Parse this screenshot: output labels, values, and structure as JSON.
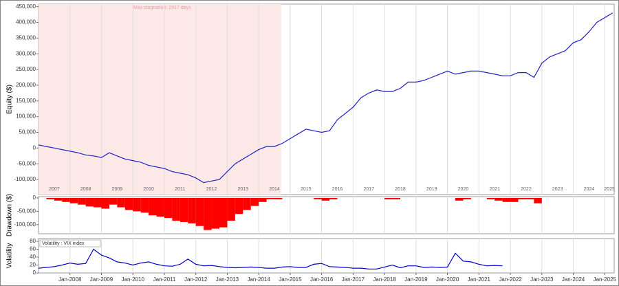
{
  "chart_data": [
    {
      "type": "line",
      "ylabel": "Equity ($)",
      "grid": true,
      "color_background_band": "#fde8e8",
      "stagnation": {
        "start": 2007.0,
        "end": 2014.71,
        "label": "Max stagnation: 2917 days"
      },
      "year_labels": [
        {
          "value": 2007.5,
          "label": "2007"
        },
        {
          "value": 2008.5,
          "label": "2008"
        },
        {
          "value": 2009.5,
          "label": "2009"
        },
        {
          "value": 2010.5,
          "label": "2010"
        },
        {
          "value": 2011.5,
          "label": "2011"
        },
        {
          "value": 2012.5,
          "label": "2012"
        },
        {
          "value": 2013.5,
          "label": "2013"
        },
        {
          "value": 2014.5,
          "label": "2014"
        },
        {
          "value": 2015.5,
          "label": "2015"
        },
        {
          "value": 2016.5,
          "label": "2016"
        },
        {
          "value": 2017.5,
          "label": "2017"
        },
        {
          "value": 2018.5,
          "label": "2018"
        },
        {
          "value": 2019.5,
          "label": "2019"
        },
        {
          "value": 2020.5,
          "label": "2020"
        },
        {
          "value": 2021.5,
          "label": "2021"
        },
        {
          "value": 2022.5,
          "label": "2022"
        },
        {
          "value": 2023.5,
          "label": "2023"
        },
        {
          "value": 2024.5,
          "label": "2024"
        },
        {
          "value": 2025.15,
          "label": "2025"
        }
      ],
      "xlim": [
        2007.0,
        2025.3
      ],
      "ylim": [
        -148000,
        458000
      ],
      "yticks": [
        {
          "value": -100000,
          "label": "-100,000"
        },
        {
          "value": -50000,
          "label": "-50,000"
        },
        0,
        {
          "value": 50000,
          "label": "50,000"
        },
        {
          "value": 100000,
          "label": "100,000"
        },
        {
          "value": 150000,
          "label": "150,000"
        },
        {
          "value": 200000,
          "label": "200,000"
        },
        {
          "value": 250000,
          "label": "250,000"
        },
        {
          "value": 300000,
          "label": "300,000"
        },
        {
          "value": 350000,
          "label": "350,000"
        },
        {
          "value": 400000,
          "label": "400,000"
        },
        {
          "value": 450000,
          "label": "450,000"
        }
      ],
      "x": [
        2007,
        2007.25,
        2007.5,
        2007.75,
        2008,
        2008.25,
        2008.5,
        2008.75,
        2009,
        2009.25,
        2009.5,
        2009.75,
        2010,
        2010.25,
        2010.5,
        2010.75,
        2011,
        2011.25,
        2011.5,
        2011.75,
        2012,
        2012.25,
        2012.5,
        2012.75,
        2013,
        2013.25,
        2013.5,
        2013.75,
        2014,
        2014.25,
        2014.5,
        2014.75,
        2015,
        2015.25,
        2015.5,
        2015.75,
        2016,
        2016.25,
        2016.5,
        2016.75,
        2017,
        2017.25,
        2017.5,
        2017.75,
        2018,
        2018.25,
        2018.5,
        2018.75,
        2019,
        2019.25,
        2019.5,
        2019.75,
        2020,
        2020.25,
        2020.5,
        2020.75,
        2021,
        2021.25,
        2021.5,
        2021.75,
        2022,
        2022.25,
        2022.5,
        2022.75,
        2023,
        2023.25,
        2023.5,
        2023.75,
        2024,
        2024.25,
        2024.5,
        2024.75,
        2025,
        2025.25
      ],
      "series": [
        {
          "color": "#2020c8",
          "values": [
            10000,
            5000,
            0,
            -5000,
            -10000,
            -15000,
            -22000,
            -25000,
            -30000,
            -15000,
            -25000,
            -35000,
            -40000,
            -45000,
            -55000,
            -60000,
            -65000,
            -75000,
            -80000,
            -85000,
            -95000,
            -110000,
            -105000,
            -100000,
            -75000,
            -50000,
            -35000,
            -20000,
            -5000,
            5000,
            5000,
            15000,
            30000,
            45000,
            60000,
            55000,
            50000,
            55000,
            90000,
            110000,
            130000,
            160000,
            175000,
            185000,
            180000,
            180000,
            190000,
            210000,
            210000,
            215000,
            225000,
            235000,
            245000,
            235000,
            240000,
            245000,
            245000,
            240000,
            235000,
            230000,
            230000,
            240000,
            240000,
            225000,
            270000,
            290000,
            300000,
            310000,
            335000,
            345000,
            370000,
            400000,
            415000,
            430000
          ]
        }
      ]
    },
    {
      "type": "bar",
      "ylabel": "Drawdown ($)",
      "grid": true,
      "xlim": [
        2007.0,
        2025.3
      ],
      "ylim": [
        -134000,
        5000
      ],
      "yticks": [
        {
          "value": -100000,
          "label": "-100,000"
        },
        {
          "value": -50000,
          "label": "-50,000"
        },
        0
      ],
      "x": [
        2007,
        2007.25,
        2007.5,
        2007.75,
        2008,
        2008.25,
        2008.5,
        2008.75,
        2009,
        2009.25,
        2009.5,
        2009.75,
        2010,
        2010.25,
        2010.5,
        2010.75,
        2011,
        2011.25,
        2011.5,
        2011.75,
        2012,
        2012.25,
        2012.5,
        2012.75,
        2013,
        2013.25,
        2013.5,
        2013.75,
        2014,
        2014.25,
        2014.5,
        2014.75,
        2015,
        2015.25,
        2015.5,
        2015.75,
        2016,
        2016.25,
        2016.5,
        2016.75,
        2017,
        2017.25,
        2017.5,
        2017.75,
        2018,
        2018.25,
        2018.5,
        2018.75,
        2019,
        2019.25,
        2019.5,
        2019.75,
        2020,
        2020.25,
        2020.5,
        2020.75,
        2021,
        2021.25,
        2021.5,
        2021.75,
        2022,
        2022.25,
        2022.5,
        2022.75,
        2023,
        2023.25,
        2023.5,
        2023.75,
        2024,
        2024.25,
        2024.5,
        2024.75,
        2025,
        2025.25
      ],
      "series": [
        {
          "color": "#ff0000",
          "values": [
            0,
            -5000,
            -10000,
            -15000,
            -20000,
            -25000,
            -32000,
            -35000,
            -40000,
            -25000,
            -35000,
            -45000,
            -50000,
            -55000,
            -65000,
            -70000,
            -75000,
            -85000,
            -90000,
            -95000,
            -105000,
            -120000,
            -115000,
            -110000,
            -85000,
            -60000,
            -45000,
            -30000,
            -15000,
            -5000,
            -5000,
            0,
            0,
            0,
            0,
            -5000,
            -10000,
            -5000,
            0,
            0,
            0,
            0,
            0,
            0,
            -5000,
            -5000,
            0,
            0,
            0,
            0,
            0,
            0,
            0,
            -10000,
            -5000,
            0,
            0,
            -5000,
            -10000,
            -15000,
            -15000,
            -5000,
            -5000,
            -20000,
            0,
            0,
            0,
            0,
            0,
            0,
            0,
            0,
            0,
            0
          ]
        }
      ]
    },
    {
      "type": "line",
      "ylabel": "Volatility",
      "grid": true,
      "legend": "Volatility : VIX index",
      "legend_position": "upper left",
      "xlim": [
        2007.0,
        2025.3
      ],
      "ylim": [
        0,
        87
      ],
      "yticks": [
        0,
        20,
        40,
        60,
        80
      ],
      "xticks": [
        {
          "value": 2008,
          "label": "Jan-2008"
        },
        {
          "value": 2009,
          "label": "Jan-2009"
        },
        {
          "value": 2010,
          "label": "Jan-2010"
        },
        {
          "value": 2011,
          "label": "Jan-2011"
        },
        {
          "value": 2012,
          "label": "Jan-2012"
        },
        {
          "value": 2013,
          "label": "Jan-2013"
        },
        {
          "value": 2014,
          "label": "Jan-2014"
        },
        {
          "value": 2015,
          "label": "Jan-2015"
        },
        {
          "value": 2016,
          "label": "Jan-2016"
        },
        {
          "value": 2017,
          "label": "Jan-2017"
        },
        {
          "value": 2018,
          "label": "Jan-2018"
        },
        {
          "value": 2019,
          "label": "Jan-2019"
        },
        {
          "value": 2020,
          "label": "Jan-2020"
        },
        {
          "value": 2021,
          "label": "Jan-2021"
        },
        {
          "value": 2022,
          "label": "Jan-2022"
        },
        {
          "value": 2023,
          "label": "Jan-2023"
        },
        {
          "value": 2024,
          "label": "Jan-2024"
        },
        {
          "value": 2025,
          "label": "Jan-2025"
        }
      ],
      "x": [
        2007,
        2007.25,
        2007.5,
        2007.75,
        2008,
        2008.25,
        2008.5,
        2008.75,
        2009,
        2009.25,
        2009.5,
        2009.75,
        2010,
        2010.25,
        2010.5,
        2010.75,
        2011,
        2011.25,
        2011.5,
        2011.75,
        2012,
        2012.25,
        2012.5,
        2012.75,
        2013,
        2013.25,
        2013.5,
        2013.75,
        2014,
        2014.25,
        2014.5,
        2014.75,
        2015,
        2015.25,
        2015.5,
        2015.75,
        2016,
        2016.25,
        2016.5,
        2016.75,
        2017,
        2017.25,
        2017.5,
        2017.75,
        2018,
        2018.25,
        2018.5,
        2018.75,
        2019,
        2019.25,
        2019.5,
        2019.75,
        2020,
        2020.25,
        2020.5,
        2020.75,
        2021,
        2021.25,
        2021.5,
        2021.75
      ],
      "series": [
        {
          "color": "#0000cc",
          "values": [
            12,
            14,
            16,
            20,
            25,
            22,
            24,
            60,
            45,
            38,
            28,
            25,
            20,
            25,
            28,
            22,
            18,
            17,
            22,
            35,
            22,
            18,
            19,
            16,
            14,
            13,
            14,
            15,
            14,
            12,
            12,
            15,
            16,
            14,
            14,
            22,
            24,
            16,
            15,
            14,
            12,
            12,
            10,
            10,
            15,
            20,
            13,
            18,
            18,
            14,
            15,
            14,
            15,
            50,
            30,
            28,
            22,
            18,
            19,
            18
          ]
        }
      ]
    }
  ]
}
